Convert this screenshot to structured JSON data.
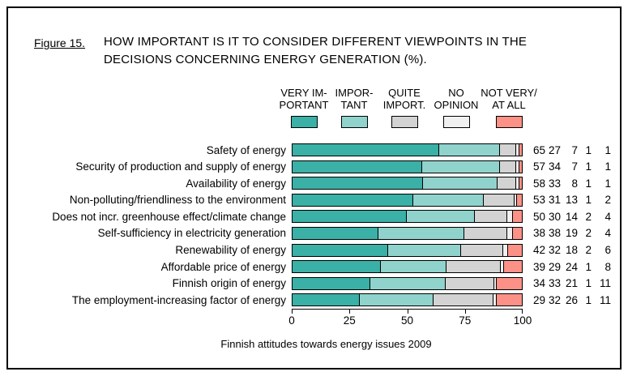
{
  "figure": {
    "label": "Figure 15.",
    "title_line1": "HOW IMPORTANT IS IT TO CONSIDER DIFFERENT VIEWPOINTS IN THE",
    "title_line2": "DECISIONS CONCERNING ENERGY GENERATION (%).",
    "caption": "Finnish attitudes towards energy issues 2009"
  },
  "chart_data": {
    "type": "bar",
    "stacked": true,
    "orientation": "horizontal",
    "title": "HOW IMPORTANT IS IT TO CONSIDER DIFFERENT VIEWPOINTS IN THE DECISIONS CONCERNING ENERGY GENERATION (%).",
    "categories": [
      "Safety of energy",
      "Security of production and supply of energy",
      "Availability of energy",
      "Non-polluting/friendliness to the environment",
      "Does not incr. greenhouse effect/climate change",
      "Self-sufficiency in electricity generation",
      "Renewability of energy",
      "Affordable price of energy",
      "Finnish origin of energy",
      "The employment-increasing factor of energy"
    ],
    "series": [
      {
        "name": "VERY IMPORTANT",
        "color": "#3ab0a6",
        "values": [
          65,
          57,
          58,
          53,
          50,
          38,
          42,
          39,
          34,
          29
        ]
      },
      {
        "name": "IMPORTANT",
        "color": "#90d3cd",
        "values": [
          27,
          34,
          33,
          31,
          30,
          38,
          32,
          29,
          33,
          32
        ]
      },
      {
        "name": "QUITE IMPORT.",
        "color": "#d3d3d3",
        "values": [
          7,
          7,
          8,
          13,
          14,
          19,
          18,
          24,
          21,
          26
        ]
      },
      {
        "name": "NO OPINION",
        "color": "#f0f0f0",
        "values": [
          1,
          1,
          1,
          1,
          2,
          2,
          2,
          1,
          1,
          1
        ]
      },
      {
        "name": "NOT VERY/AT ALL",
        "color": "#fb9187",
        "values": [
          1,
          1,
          1,
          2,
          4,
          4,
          6,
          8,
          11,
          11
        ]
      }
    ],
    "legend": [
      {
        "line1": "VERY IM-",
        "line2": "PORTANT",
        "color": "#3ab0a6"
      },
      {
        "line1": "IMPOR-",
        "line2": "TANT",
        "color": "#90d3cd"
      },
      {
        "line1": "QUITE",
        "line2": "IMPORT.",
        "color": "#d3d3d3"
      },
      {
        "line1": "NO",
        "line2": "OPINION",
        "color": "#f0f0f0"
      },
      {
        "line1": "NOT VERY/",
        "line2": "AT ALL",
        "color": "#fb9187"
      }
    ],
    "x_ticks": [
      0,
      25,
      50,
      75,
      100
    ],
    "xlim": [
      0,
      100
    ],
    "value_labels_shown": true,
    "legend_position": "top",
    "grid": false
  }
}
